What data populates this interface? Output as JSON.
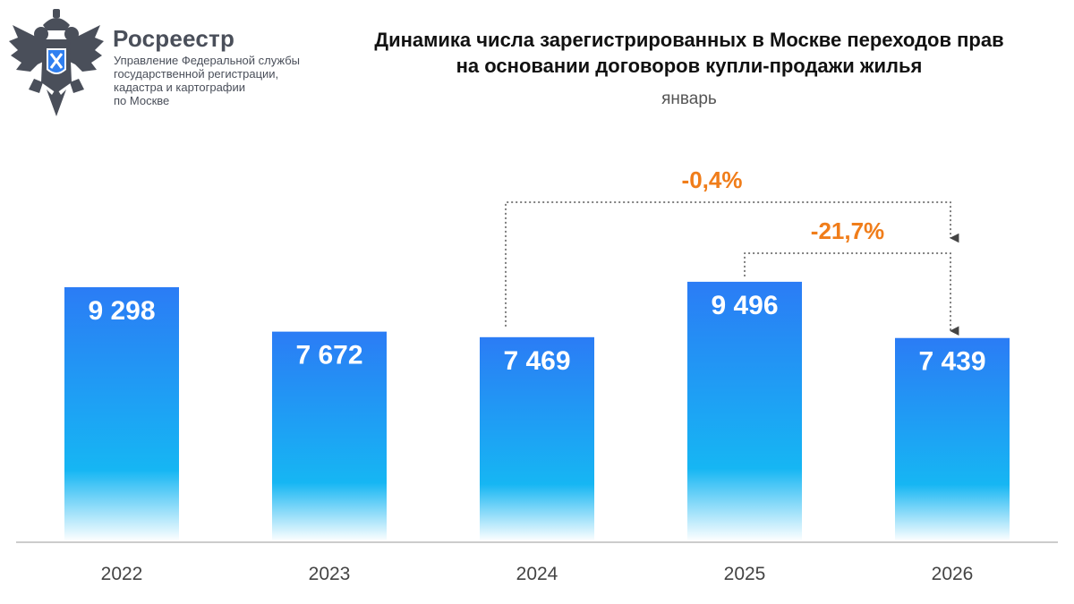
{
  "header": {
    "org_name": "Росреестр",
    "org_desc": [
      "Управление Федеральной службы",
      "государственной регистрации,",
      "кадастра и картографии",
      "по Москве"
    ],
    "logo_icon": "double-headed-eagle-emblem-icon"
  },
  "chart_data": {
    "type": "bar",
    "title": [
      "Динамика числа зарегистрированных в Москве переходов прав",
      "на основании договоров купли-продажи жилья"
    ],
    "subtitle": "январь",
    "categories": [
      "2022",
      "2023",
      "2024",
      "2025",
      "2026"
    ],
    "values": [
      9298,
      7672,
      7469,
      9496,
      7439
    ],
    "value_labels": [
      "9 298",
      "7 672",
      "7 469",
      "9 496",
      "7 439"
    ],
    "ylim": [
      0,
      10000
    ],
    "grid": false,
    "legend": "none",
    "annotations": [
      {
        "from": "2024",
        "to": "2026",
        "label": "-0,4%"
      },
      {
        "from": "2025",
        "to": "2026",
        "label": "-21,7%"
      }
    ],
    "colors": {
      "bar_top": "#2b7cf5",
      "bar_mid": "#16b6f3",
      "bar_bottom": "#ffffff",
      "annotation": "#f07d1a",
      "axis": "#bbbbbb",
      "tick_label": "#444444",
      "value_label": "#ffffff"
    }
  }
}
